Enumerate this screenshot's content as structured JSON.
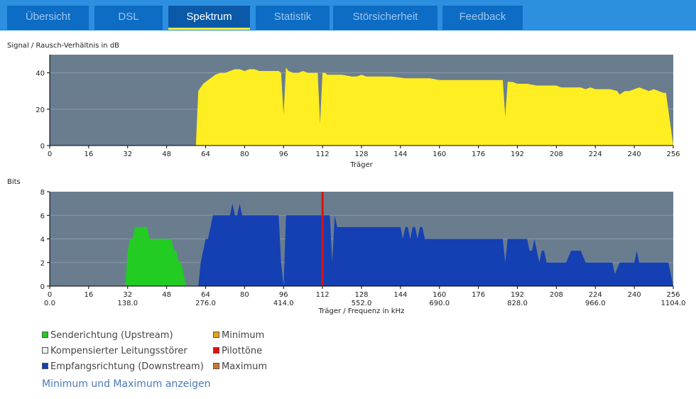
{
  "tabs": [
    {
      "label": "Übersicht",
      "active": false
    },
    {
      "label": "DSL",
      "active": false
    },
    {
      "label": "Spektrum",
      "active": true
    },
    {
      "label": "Statistik",
      "active": false
    },
    {
      "label": "Störsicherheit",
      "active": false
    },
    {
      "label": "Feedback",
      "active": false
    }
  ],
  "colors": {
    "plot_bg": "#6a7d8f",
    "snr": "#ffee22",
    "upstream": "#22cc22",
    "downstream": "#1440b4",
    "pilot": "#dd1111",
    "minimum": "#e8a020",
    "maximum": "#c87830",
    "rfi": "#f0f0f0"
  },
  "chart_data": [
    {
      "type": "area",
      "title": "Signal / Rausch-Verhältnis in dB",
      "xlabel": "Träger",
      "ylabel": "",
      "xlim": [
        0,
        256
      ],
      "ylim": [
        0,
        50
      ],
      "xticks": [
        "0",
        "16",
        "32",
        "48",
        "64",
        "80",
        "96",
        "112",
        "128",
        "144",
        "160",
        "176",
        "192",
        "208",
        "224",
        "240",
        "256"
      ],
      "yticks": [
        "0",
        "20",
        "40"
      ],
      "series": [
        {
          "color": "snr",
          "x": [
            0,
            60,
            61,
            62,
            63,
            64,
            66,
            68,
            70,
            72,
            74,
            76,
            78,
            80,
            82,
            84,
            86,
            88,
            90,
            92,
            94,
            95,
            96,
            97,
            98,
            100,
            102,
            104,
            106,
            108,
            110,
            111,
            112,
            113,
            114,
            116,
            120,
            124,
            126,
            128,
            130,
            134,
            140,
            146,
            150,
            156,
            160,
            170,
            180,
            186,
            187,
            188,
            190,
            192,
            196,
            200,
            204,
            208,
            210,
            214,
            218,
            220,
            222,
            224,
            230,
            233,
            234,
            236,
            238,
            240,
            242,
            244,
            246,
            248,
            250,
            252,
            253,
            256
          ],
          "y": [
            0,
            0,
            30,
            32,
            34,
            35,
            37,
            39,
            40,
            40,
            41,
            42,
            42,
            41,
            42,
            42,
            41,
            41,
            41,
            41,
            41,
            40,
            17,
            43,
            41,
            40,
            40,
            41,
            40,
            40,
            40,
            12,
            40,
            40,
            39,
            39,
            39,
            38,
            38,
            39,
            38,
            38,
            38,
            37,
            37,
            37,
            36,
            36,
            36,
            36,
            16,
            35,
            35,
            34,
            34,
            33,
            33,
            33,
            32,
            32,
            32,
            31,
            32,
            31,
            31,
            30,
            28,
            30,
            30,
            31,
            32,
            31,
            30,
            31,
            30,
            29,
            29,
            0
          ]
        }
      ]
    },
    {
      "type": "area",
      "title": "Bits",
      "xlabel": "Träger / Frequenz in kHz",
      "ylabel": "",
      "xlim": [
        0,
        256
      ],
      "ylim": [
        0,
        8
      ],
      "xticks": [
        "0",
        "16",
        "32",
        "48",
        "64",
        "80",
        "96",
        "112",
        "128",
        "144",
        "160",
        "176",
        "192",
        "208",
        "224",
        "240",
        "256"
      ],
      "xticks_khz": [
        "0.0",
        "138.0",
        "276.0",
        "414.0",
        "552.0",
        "690.0",
        "828.0",
        "966.0",
        "1104.0"
      ],
      "yticks": [
        "0",
        "2",
        "4",
        "6",
        "8"
      ],
      "pilot_carrier": 112,
      "series": [
        {
          "name": "Senderichtung (Upstream)",
          "color": "upstream",
          "x": [
            31,
            32,
            33,
            34,
            35,
            36,
            37,
            38,
            39,
            40,
            41,
            42,
            43,
            44,
            45,
            46,
            47,
            48,
            49,
            50,
            51,
            52,
            53,
            54,
            55,
            56
          ],
          "y": [
            0,
            3,
            4,
            4,
            5,
            5,
            5,
            5,
            5,
            5,
            4,
            4,
            4,
            4,
            4,
            4,
            4,
            4,
            4,
            4,
            3,
            3,
            2,
            2,
            1,
            0
          ]
        },
        {
          "name": "Empfangsrichtung (Downstream)",
          "color": "downstream",
          "x": [
            60,
            61,
            62,
            63,
            64,
            65,
            66,
            67,
            68,
            70,
            72,
            74,
            75,
            76,
            77,
            78,
            79,
            80,
            82,
            84,
            86,
            88,
            90,
            92,
            94,
            95,
            96,
            97,
            98,
            100,
            102,
            104,
            106,
            108,
            110,
            111,
            112,
            113,
            114,
            115,
            116,
            117,
            118,
            120,
            124,
            128,
            132,
            136,
            140,
            144,
            145,
            146,
            147,
            148,
            149,
            150,
            151,
            152,
            153,
            154,
            155,
            156,
            158,
            160,
            162,
            170,
            180,
            186,
            187,
            188,
            190,
            192,
            194,
            196,
            197,
            198,
            199,
            200,
            201,
            202,
            203,
            204,
            206,
            208,
            210,
            212,
            214,
            216,
            218,
            220,
            222,
            224,
            226,
            228,
            230,
            231,
            232,
            234,
            236,
            238,
            240,
            241,
            242,
            244,
            246,
            248,
            250,
            252,
            254,
            256
          ],
          "y": [
            0,
            0,
            2,
            3,
            4,
            4,
            5,
            6,
            6,
            6,
            6,
            6,
            7,
            6,
            6,
            7,
            6,
            6,
            6,
            6,
            6,
            6,
            6,
            6,
            6,
            2,
            0,
            6,
            6,
            6,
            6,
            6,
            6,
            6,
            6,
            6,
            6,
            6,
            6,
            6,
            2,
            6,
            5,
            5,
            5,
            5,
            5,
            5,
            5,
            5,
            4,
            5,
            5,
            4,
            5,
            5,
            4,
            5,
            5,
            4,
            4,
            4,
            4,
            4,
            4,
            4,
            4,
            4,
            2,
            4,
            4,
            4,
            4,
            4,
            3,
            3,
            4,
            3,
            2,
            3,
            3,
            2,
            2,
            2,
            2,
            2,
            3,
            3,
            3,
            2,
            2,
            2,
            2,
            2,
            2,
            2,
            1,
            2,
            2,
            2,
            2,
            3,
            2,
            2,
            2,
            2,
            2,
            2,
            2,
            0
          ]
        }
      ]
    }
  ],
  "legend": [
    {
      "label": "Senderichtung (Upstream)",
      "color": "upstream"
    },
    {
      "label": "Minimum",
      "color": "minimum"
    },
    {
      "label": "Kompensierter Leitungsstörer",
      "color": "rfi"
    },
    {
      "label": "Pilottöne",
      "color": "pilot"
    },
    {
      "label": "Empfangsrichtung (Downstream)",
      "color": "downstream"
    },
    {
      "label": "Maximum",
      "color": "maximum"
    }
  ],
  "toggle_label": "Minimum und Maximum anzeigen"
}
